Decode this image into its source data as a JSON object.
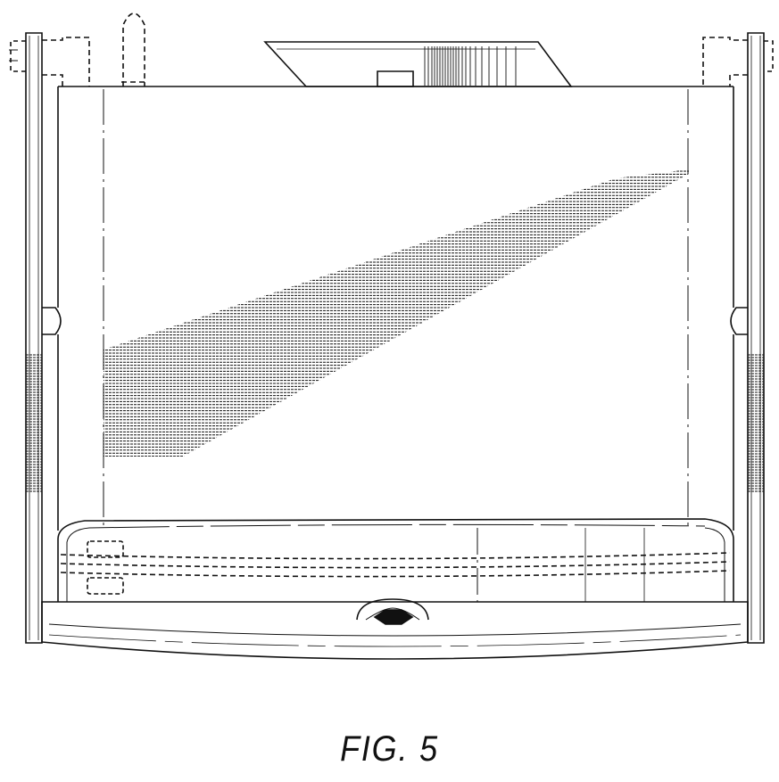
{
  "figure": {
    "caption": "FIG. 5"
  },
  "colors": {
    "ink": "#111111",
    "paper": "#ffffff"
  }
}
